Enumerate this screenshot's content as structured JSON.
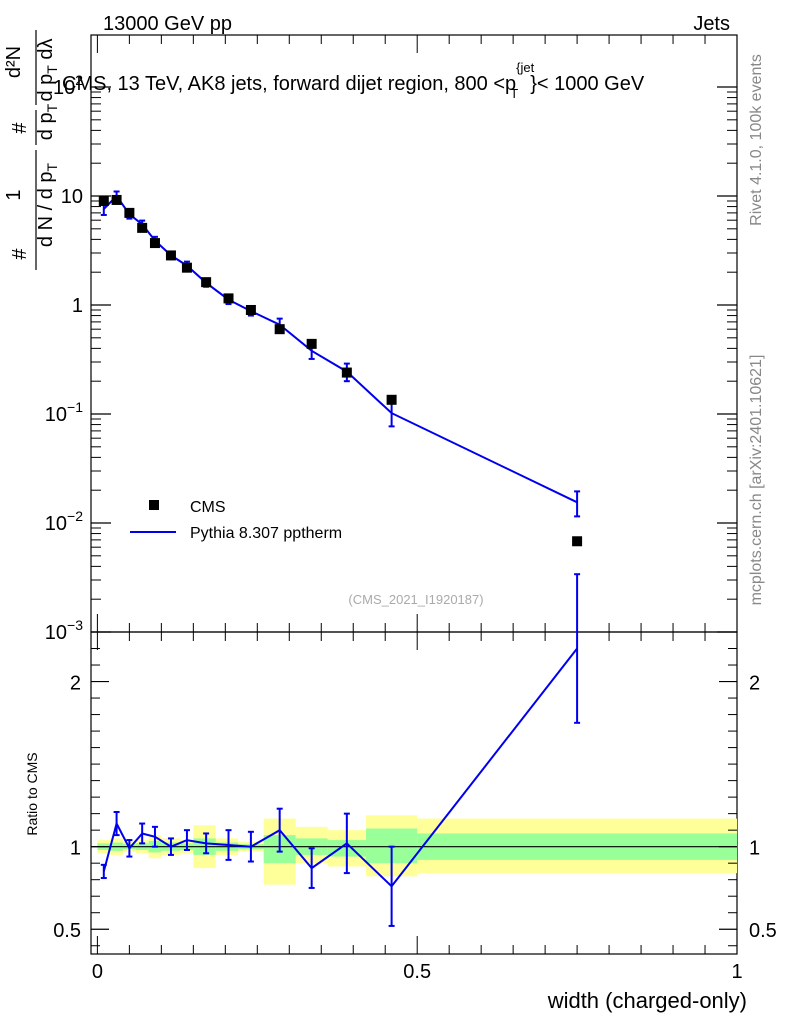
{
  "header": {
    "left": "13000 GeV pp",
    "right": "Jets",
    "side_top": "Rivet 4.1.0,  100k events",
    "side_bottom": "mcplots.cern.ch [arXiv:2401.10621]"
  },
  "chart_data": [
    {
      "type": "scatter",
      "panel": "main",
      "title": "CMS, 13 TeV, AK8 jets, forward dijet region, 800 <p",
      "title_sup": "{jet",
      "title_sub": "T",
      "title_end": "}< 1000 GeV",
      "analysis_id": "(CMS_2021_I1920187)",
      "ylabel": {
        "hash": "#",
        "num1": "1",
        "den1": "d N / d p",
        "den1_sub": "T",
        "num2": "#",
        "den2": "d p",
        "den2_sub": "T",
        "num3": "d²N",
        "den3": "d p",
        "den3_sub": "T",
        "den3_end": " dλ"
      },
      "yscale": "log",
      "ylim": [
        0.001,
        300
      ],
      "xlim": [
        -0.01,
        1.0
      ],
      "yticks": [
        {
          "value": 0.001,
          "base": "10",
          "exp": "−3"
        },
        {
          "value": 0.01,
          "base": "10",
          "exp": "−2"
        },
        {
          "value": 0.1,
          "base": "10",
          "exp": "−1"
        },
        {
          "value": 1,
          "base": "1",
          "exp": ""
        },
        {
          "value": 10,
          "base": "10",
          "exp": ""
        },
        {
          "value": 100,
          "base": "10",
          "exp": "2"
        }
      ],
      "legend": {
        "position": "bottom-left",
        "data_label": "CMS",
        "mc_label": "Pythia 8.307 pptherm"
      },
      "series": [
        {
          "name": "CMS",
          "x": [
            0.01,
            0.03,
            0.05,
            0.07,
            0.09,
            0.115,
            0.14,
            0.17,
            0.205,
            0.24,
            0.285,
            0.335,
            0.39,
            0.46,
            0.75
          ],
          "y": [
            9.0,
            9.2,
            7.0,
            5.1,
            3.7,
            2.85,
            2.2,
            1.62,
            1.15,
            0.9,
            0.6,
            0.44,
            0.24,
            0.135,
            0.0068
          ]
        },
        {
          "name": "Pythia 8.307 pptherm",
          "x": [
            0.01,
            0.03,
            0.05,
            0.07,
            0.09,
            0.115,
            0.14,
            0.17,
            0.205,
            0.24,
            0.285,
            0.335,
            0.39,
            0.46,
            0.75
          ],
          "y": [
            7.6,
            10.0,
            6.8,
            5.5,
            3.9,
            2.85,
            2.3,
            1.6,
            1.12,
            0.88,
            0.66,
            0.38,
            0.245,
            0.102,
            0.0155
          ],
          "err": [
            0.9,
            1.0,
            0.6,
            0.45,
            0.32,
            0.22,
            0.2,
            0.13,
            0.1,
            0.08,
            0.09,
            0.06,
            0.045,
            0.025,
            0.004
          ]
        }
      ]
    },
    {
      "type": "line",
      "panel": "ratio",
      "ylabel": "Ratio to CMS",
      "xlabel": "width (charged-only)",
      "xlim": [
        -0.01,
        1.0
      ],
      "ylim": [
        0.35,
        2.3
      ],
      "xticks": [
        "0",
        "0.5",
        "1"
      ],
      "yticks": [
        "0.5",
        "1",
        "2"
      ],
      "bands": [
        {
          "x0": 0.0,
          "x1": 0.02,
          "y1_lo": 0.96,
          "y1_hi": 1.04,
          "y2_lo": 0.98,
          "y2_hi": 1.02
        },
        {
          "x0": 0.02,
          "x1": 0.04,
          "y1_lo": 0.95,
          "y1_hi": 1.05,
          "y2_lo": 0.975,
          "y2_hi": 1.025
        },
        {
          "x0": 0.04,
          "x1": 0.06,
          "y1_lo": 0.97,
          "y1_hi": 1.03,
          "y2_lo": 0.985,
          "y2_hi": 1.015
        },
        {
          "x0": 0.06,
          "x1": 0.08,
          "y1_lo": 0.96,
          "y1_hi": 1.04,
          "y2_lo": 0.98,
          "y2_hi": 1.02
        },
        {
          "x0": 0.08,
          "x1": 0.1,
          "y1_lo": 0.93,
          "y1_hi": 1.07,
          "y2_lo": 0.965,
          "y2_hi": 1.035
        },
        {
          "x0": 0.1,
          "x1": 0.13,
          "y1_lo": 0.95,
          "y1_hi": 1.05,
          "y2_lo": 0.975,
          "y2_hi": 1.025
        },
        {
          "x0": 0.13,
          "x1": 0.15,
          "y1_lo": 0.96,
          "y1_hi": 1.04,
          "y2_lo": 0.98,
          "y2_hi": 1.02
        },
        {
          "x0": 0.15,
          "x1": 0.185,
          "y1_lo": 0.87,
          "y1_hi": 1.13,
          "y2_lo": 0.95,
          "y2_hi": 1.05
        },
        {
          "x0": 0.185,
          "x1": 0.22,
          "y1_lo": 0.95,
          "y1_hi": 1.05,
          "y2_lo": 0.975,
          "y2_hi": 1.025
        },
        {
          "x0": 0.22,
          "x1": 0.26,
          "y1_lo": 0.97,
          "y1_hi": 1.03,
          "y2_lo": 0.985,
          "y2_hi": 1.015
        },
        {
          "x0": 0.26,
          "x1": 0.31,
          "y1_lo": 0.77,
          "y1_hi": 1.17,
          "y2_lo": 0.9,
          "y2_hi": 1.07
        },
        {
          "x0": 0.31,
          "x1": 0.36,
          "y1_lo": 0.9,
          "y1_hi": 1.12,
          "y2_lo": 0.95,
          "y2_hi": 1.05
        },
        {
          "x0": 0.36,
          "x1": 0.42,
          "y1_lo": 0.88,
          "y1_hi": 1.1,
          "y2_lo": 0.94,
          "y2_hi": 1.04
        },
        {
          "x0": 0.42,
          "x1": 0.5,
          "y1_lo": 0.82,
          "y1_hi": 1.19,
          "y2_lo": 0.9,
          "y2_hi": 1.11
        },
        {
          "x0": 0.5,
          "x1": 1.0,
          "y1_lo": 0.84,
          "y1_hi": 1.17,
          "y2_lo": 0.92,
          "y2_hi": 1.08
        }
      ],
      "series": [
        {
          "name": "Pythia 8.307 pptherm / CMS",
          "x": [
            0.01,
            0.03,
            0.05,
            0.07,
            0.09,
            0.115,
            0.14,
            0.17,
            0.205,
            0.24,
            0.285,
            0.335,
            0.39,
            0.46,
            0.75
          ],
          "y": [
            0.85,
            1.14,
            0.99,
            1.08,
            1.06,
            1.0,
            1.04,
            1.02,
            1.01,
            1.0,
            1.1,
            0.87,
            1.02,
            0.76,
            2.2
          ],
          "err": [
            0.04,
            0.07,
            0.05,
            0.06,
            0.06,
            0.05,
            0.06,
            0.06,
            0.09,
            0.09,
            0.13,
            0.12,
            0.18,
            0.24,
            0.45
          ]
        }
      ]
    }
  ]
}
